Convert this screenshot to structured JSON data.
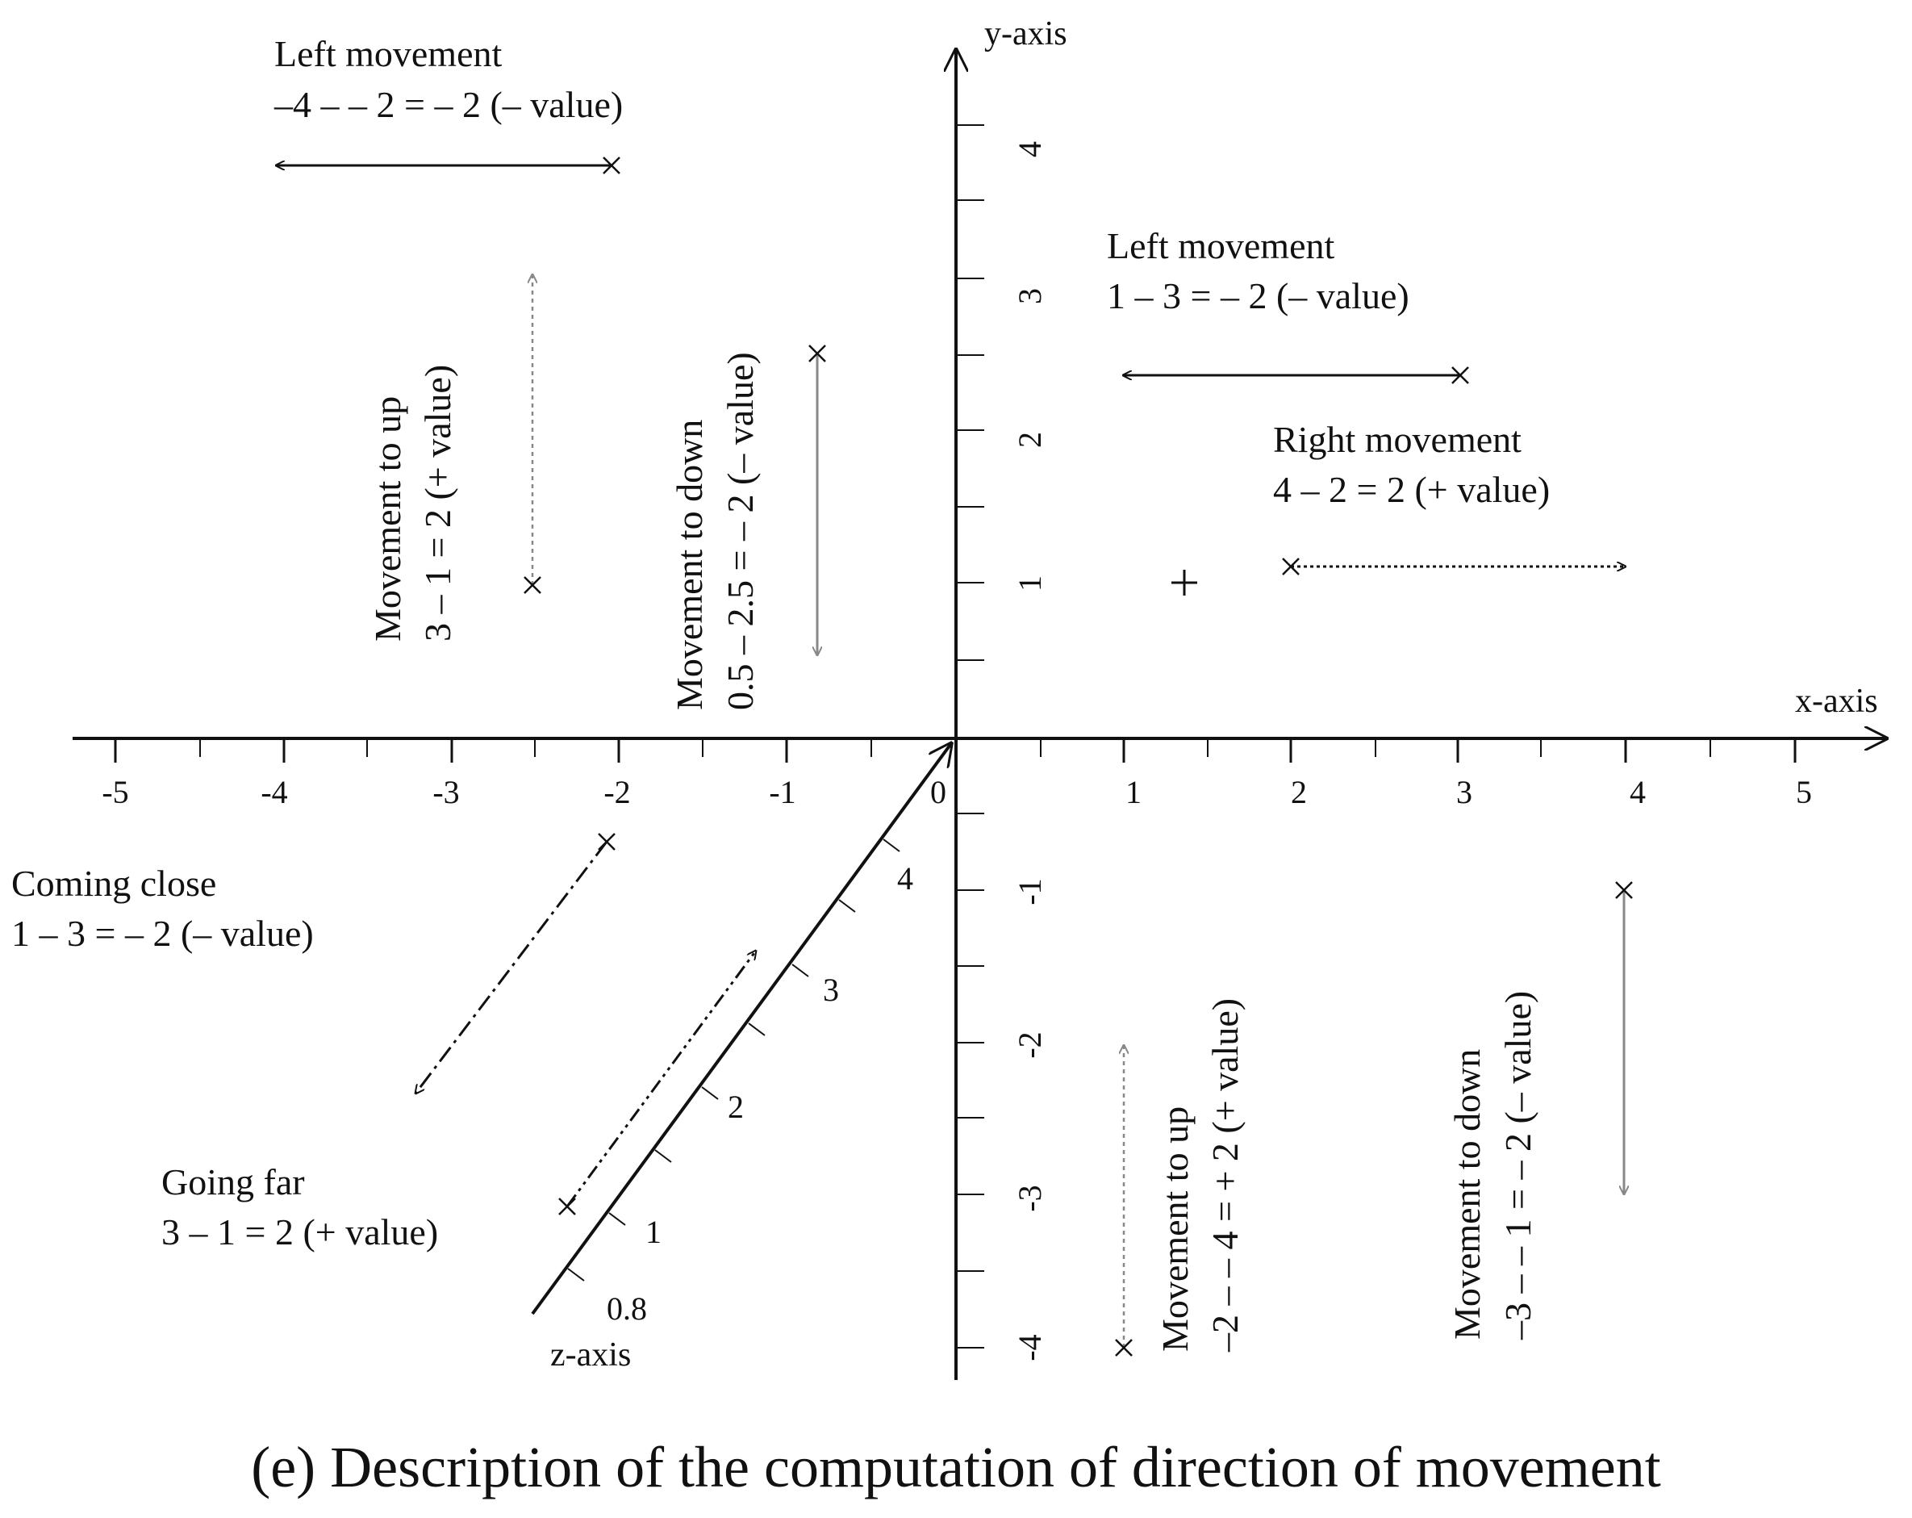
{
  "caption": "(e) Description of the computation of direction of movement",
  "axes": {
    "x_name": "x-axis",
    "y_name": "y-axis",
    "z_name": "z-axis",
    "x_ticks": [
      "-5",
      "-4",
      "-3",
      "-2",
      "-1",
      "0",
      "1",
      "2",
      "3",
      "4",
      "5"
    ],
    "y_ticks": [
      "4",
      "3",
      "2",
      "1",
      "-1",
      "-2",
      "-3",
      "-4"
    ],
    "z_ticks": [
      "0.8",
      "1",
      "2",
      "3",
      "4"
    ]
  },
  "annotations": {
    "left_top": {
      "title": "Left movement",
      "formula": "–4 – – 2  = – 2 (– value)"
    },
    "left_right": {
      "title": "Left movement",
      "formula": "1 – 3  = – 2 (– value)"
    },
    "right": {
      "title": "Right movement",
      "formula": "4 – 2  = 2 (+ value)"
    },
    "up_left": {
      "title": "Movement to up",
      "formula": "3 – 1  =  2 (+ value)"
    },
    "down_mid": {
      "title": "Movement to down",
      "formula": "0.5 – 2.5 = – 2 (– value)"
    },
    "close": {
      "title": "Coming close",
      "formula": "1 – 3  = – 2 (– value)"
    },
    "far": {
      "title": "Going far",
      "formula": "3 – 1  =  2 (+ value)"
    },
    "up_bottom": {
      "title": "Movement to up",
      "formula": "–2 – – 4 = + 2 (+ value)"
    },
    "down_right": {
      "title": "Movement to down",
      "formula": "–3 – – 1  = – 2 (– value)"
    }
  },
  "colors": {
    "ink": "#111111",
    "gray_arrow": "#888888"
  }
}
